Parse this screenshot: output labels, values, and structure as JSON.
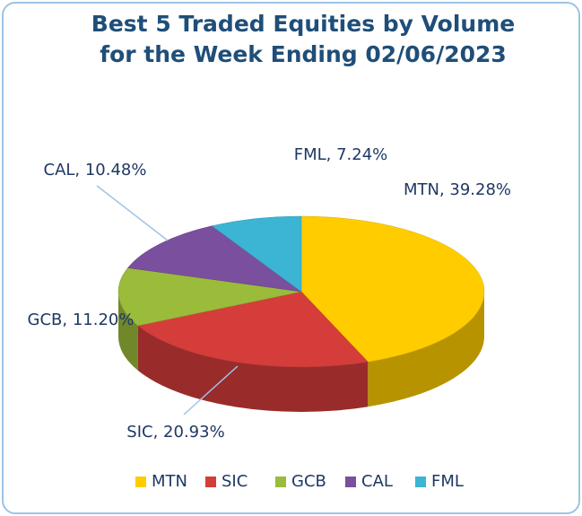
{
  "chart_data": {
    "type": "pie3d",
    "title": [
      "Best 5 Traded Equities by Volume",
      "for the Week Ending 02/06/2023"
    ],
    "categories": [
      "MTN",
      "SIC",
      "GCB",
      "CAL",
      "FML"
    ],
    "values": [
      39.28,
      20.93,
      11.2,
      10.48,
      7.24
    ],
    "value_labels": [
      "MTN, 39.28%",
      "SIC, 20.93%",
      "GCB, 11.20%",
      "CAL, 10.48%",
      "FML, 7.24%"
    ],
    "colors": [
      "#ffcc00",
      "#d43d3a",
      "#9bbb3b",
      "#7a4f9e",
      "#3cb4d4"
    ],
    "legend": "bottom"
  }
}
